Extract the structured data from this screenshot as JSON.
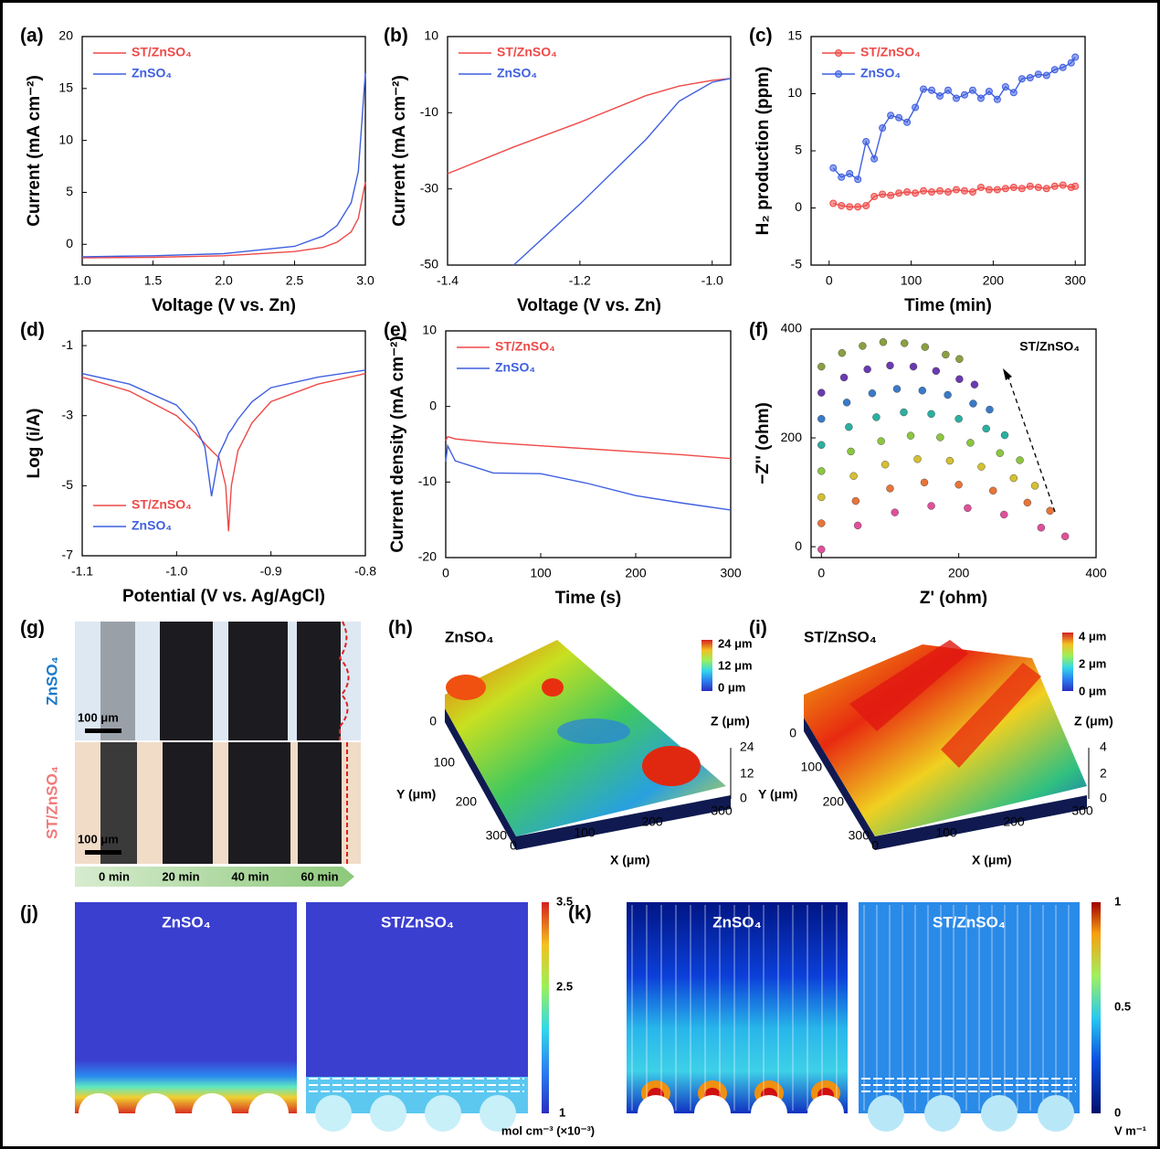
{
  "chart_data": [
    {
      "panel": "(a)",
      "type": "line",
      "xlabel": "Voltage (V vs. Zn)",
      "ylabel": "Current (mA cm⁻²)",
      "x": [
        1.0,
        1.5,
        2.0,
        2.5,
        2.7,
        2.8,
        2.9,
        2.95,
        3.0
      ],
      "xlim": [
        1.0,
        3.0
      ],
      "xticks": [
        {
          "value": 1,
          "label": "1.0"
        },
        1.5,
        {
          "value": 2,
          "label": "2.0"
        },
        2.5,
        {
          "value": 3,
          "label": "3.0"
        }
      ],
      "ylim": [
        -2,
        20
      ],
      "yticks": [
        0,
        5,
        10,
        15,
        20
      ],
      "legend": "upper left",
      "series": [
        {
          "name": "ST/ZnSO₄",
          "color": "#ee4a48",
          "values": [
            -1.3,
            -1.25,
            -1.1,
            -0.7,
            -0.3,
            0.2,
            1.2,
            2.5,
            6
          ]
        },
        {
          "name": "ZnSO₄",
          "color": "#3f5fe0",
          "values": [
            -1.2,
            -1.1,
            -0.9,
            -0.2,
            0.8,
            1.8,
            4.0,
            7,
            16.5
          ]
        }
      ]
    },
    {
      "panel": "(b)",
      "type": "line",
      "xlabel": "Voltage (V vs. Zn)",
      "ylabel": "Current (mA cm⁻²)",
      "x": [
        -1.4,
        -1.3,
        -1.2,
        -1.1,
        -1.05,
        -1.0,
        -0.972
      ],
      "xlim": [
        -1.4,
        -0.972
      ],
      "xticks": [
        -1.4,
        -1.2,
        {
          "value": -1,
          "label": "-1.0"
        }
      ],
      "ylim": [
        -50,
        10
      ],
      "yticks": [
        -50,
        -30,
        -10,
        10
      ],
      "legend": "upper left",
      "series": [
        {
          "name": "ST/ZnSO₄",
          "color": "#ee4a48",
          "values": [
            -26,
            -19,
            -12.5,
            -5.5,
            -3,
            -1.5,
            -1
          ]
        },
        {
          "name": "ZnSO₄",
          "color": "#3f5fe0",
          "values": [
            null,
            -50,
            -34,
            -17,
            -7,
            -2,
            -1
          ]
        }
      ]
    },
    {
      "panel": "(c)",
      "type": "line",
      "markers": true,
      "xlabel": "Time (min)",
      "ylabel": "H₂ production (ppm)",
      "x": [
        5,
        15,
        25,
        35,
        45,
        55,
        65,
        75,
        85,
        95,
        105,
        115,
        125,
        135,
        145,
        155,
        165,
        175,
        185,
        195,
        205,
        215,
        225,
        235,
        245,
        255,
        265,
        275,
        285,
        295,
        300
      ],
      "xlim": [
        -22,
        312
      ],
      "xticks": [
        0,
        100,
        200,
        300
      ],
      "ylim": [
        -5,
        15
      ],
      "yticks": [
        -5,
        0,
        5,
        10,
        15
      ],
      "legend": "upper left",
      "series": [
        {
          "name": "ST/ZnSO₄",
          "color": "#ee4a48",
          "values": [
            0.4,
            0.2,
            0.1,
            0.1,
            0.2,
            1.0,
            1.2,
            1.1,
            1.3,
            1.4,
            1.3,
            1.5,
            1.4,
            1.5,
            1.4,
            1.6,
            1.5,
            1.4,
            1.8,
            1.6,
            1.6,
            1.7,
            1.8,
            1.7,
            1.9,
            1.8,
            1.7,
            1.9,
            2.0,
            1.8,
            1.9
          ]
        },
        {
          "name": "ZnSO₄",
          "color": "#3f5fe0",
          "values": [
            3.5,
            2.7,
            3.0,
            2.5,
            5.8,
            4.3,
            7.0,
            8.1,
            7.9,
            7.5,
            8.8,
            10.4,
            10.3,
            9.8,
            10.3,
            9.6,
            9.9,
            10.3,
            9.6,
            10.2,
            9.5,
            10.6,
            10.1,
            11.3,
            11.4,
            11.7,
            11.6,
            12.1,
            12.3,
            12.7,
            13.2
          ]
        }
      ]
    },
    {
      "panel": "(d)",
      "type": "line",
      "xlabel": "Potential (V vs. Ag/AgCl)",
      "ylabel": "Log (i/A)",
      "x": [
        -1.1,
        -1.05,
        -1.0,
        -0.98,
        -0.97,
        -0.963,
        -0.955,
        -0.948,
        -0.945,
        -0.942,
        -0.935,
        -0.92,
        -0.9,
        -0.85,
        -0.8
      ],
      "xlim": [
        -1.1,
        -0.8
      ],
      "xticks": [
        -1.1,
        {
          "value": -1,
          "label": "-1.0"
        },
        -0.9,
        -0.8
      ],
      "ylim": [
        -7,
        -0.58
      ],
      "yticks": [
        -1,
        -3,
        -5,
        -7
      ],
      "legend": "lower left",
      "series": [
        {
          "name": "ST/ZnSO₄",
          "color": "#ee4a48",
          "values": [
            -1.9,
            -2.3,
            -3.0,
            -3.5,
            -3.8,
            -4.0,
            -4.2,
            -5.0,
            -6.3,
            -5.0,
            -4.0,
            -3.2,
            -2.6,
            -2.1,
            -1.8
          ]
        },
        {
          "name": "ZnSO₄",
          "color": "#3f5fe0",
          "values": [
            -1.8,
            -2.1,
            -2.7,
            -3.3,
            -3.9,
            -5.3,
            -4.1,
            -3.7,
            -3.5,
            -3.4,
            -3.1,
            -2.6,
            -2.2,
            -1.9,
            -1.7
          ]
        }
      ]
    },
    {
      "panel": "(e)",
      "type": "line",
      "xlabel": "Time (s)",
      "ylabel": "Current density (mA cm⁻²)",
      "x": [
        0,
        2,
        10,
        50,
        100,
        150,
        200,
        250,
        300
      ],
      "xlim": [
        0,
        300
      ],
      "xticks": [
        0,
        100,
        200,
        300
      ],
      "ylim": [
        -20,
        10
      ],
      "yticks": [
        -20,
        -10,
        0,
        10
      ],
      "legend": "upper left",
      "series": [
        {
          "name": "ST/ZnSO₄",
          "color": "#ee4a48",
          "values": [
            -4.5,
            -4,
            -4.3,
            -4.8,
            -5.2,
            -5.6,
            -6,
            -6.4,
            -6.9
          ]
        },
        {
          "name": "ZnSO₄",
          "color": "#3f5fe0",
          "values": [
            -7.3,
            -5.2,
            -7.2,
            -8.8,
            -8.9,
            -10.2,
            -11.8,
            -12.8,
            -13.7
          ]
        }
      ]
    },
    {
      "panel": "(f)",
      "type": "scatter",
      "xlabel": "Z' (ohm)",
      "ylabel": "−Z'' (ohm)",
      "annotation": "ST/ZnSO₄",
      "xlim": [
        -15,
        400
      ],
      "xticks": [
        0,
        200,
        400
      ],
      "ylim": [
        -20,
        400
      ],
      "yticks": [
        0,
        200,
        400
      ],
      "series": [
        {
          "color": "#e0509a",
          "x": [
            0,
            53,
            107,
            160,
            213,
            266,
            320,
            355
          ],
          "values": [
            -5,
            39,
            63,
            75,
            71,
            59,
            35,
            19
          ]
        },
        {
          "color": "#e8743a",
          "x": [
            0,
            50,
            100,
            150,
            200,
            250,
            300,
            333
          ],
          "values": [
            43,
            84,
            107,
            118,
            114,
            103,
            81,
            66
          ]
        },
        {
          "color": "#d4c030",
          "x": [
            0,
            47,
            93,
            140,
            187,
            233,
            280,
            311
          ],
          "values": [
            91,
            130,
            151,
            161,
            158,
            147,
            126,
            112
          ]
        },
        {
          "color": "#8cc63f",
          "x": [
            0,
            43,
            87,
            130,
            173,
            217,
            260,
            289
          ],
          "values": [
            139,
            175,
            194,
            204,
            201,
            191,
            172,
            159
          ]
        },
        {
          "color": "#2ab0a0",
          "x": [
            0,
            40,
            80,
            120,
            160,
            200,
            240,
            267
          ],
          "values": [
            187,
            220,
            238,
            247,
            244,
            235,
            217,
            205
          ]
        },
        {
          "color": "#3a7ac8",
          "x": [
            0,
            37,
            74,
            110,
            147,
            184,
            221,
            245
          ],
          "values": [
            235,
            265,
            282,
            290,
            287,
            279,
            263,
            252
          ]
        },
        {
          "color": "#6a3ab0",
          "x": [
            0,
            33,
            67,
            100,
            134,
            167,
            201,
            223
          ],
          "values": [
            283,
            311,
            326,
            333,
            331,
            323,
            308,
            298
          ]
        },
        {
          "color": "#8aa040",
          "x": [
            0,
            30,
            60,
            90,
            121,
            151,
            181,
            201
          ],
          "values": [
            331,
            356,
            369,
            376,
            374,
            367,
            353,
            345
          ]
        }
      ]
    }
  ],
  "panels": {
    "g": {
      "label": "(g)",
      "rows": [
        "ZnSO₄",
        "ST/ZnSO₄"
      ],
      "scale": [
        "100 μm",
        "100 μm"
      ],
      "times": [
        "0 min",
        "20 min",
        "40 min",
        "60 min"
      ]
    },
    "h": {
      "label": "(h)",
      "title": "ZnSO₄",
      "colorbar": [
        "24 μm",
        "12 μm",
        "0 μm"
      ],
      "z_axis": "Z (μm)",
      "y_axis": "Y (μm)",
      "x_axis": "X (μm)",
      "z_ticks": [
        "24",
        "12",
        "0"
      ],
      "y_ticks": [
        "0",
        "100",
        "200",
        "300"
      ],
      "x_ticks": [
        "0",
        "100",
        "200",
        "300"
      ]
    },
    "i": {
      "label": "(i)",
      "title": "ST/ZnSO₄",
      "colorbar": [
        "4 μm",
        "2 μm",
        "0 μm"
      ],
      "z_axis": "Z (μm)",
      "y_axis": "Y (μm)",
      "x_axis": "X (μm)",
      "z_ticks": [
        "4",
        "2",
        "0"
      ],
      "y_ticks": [
        "0",
        "100",
        "200",
        "300"
      ],
      "x_ticks": [
        "0",
        "100",
        "200",
        "300"
      ]
    },
    "j": {
      "label": "(j)",
      "titles": [
        "ZnSO₄",
        "ST/ZnSO₄"
      ],
      "colorbar": [
        "3.5",
        "2.5",
        "1"
      ],
      "unit": "mol cm⁻³ (×10⁻³)"
    },
    "k": {
      "label": "(k)",
      "titles": [
        "ZnSO₄",
        "ST/ZnSO₄"
      ],
      "colorbar": [
        "1",
        "0.5",
        "0"
      ],
      "unit": "V m⁻¹"
    }
  }
}
